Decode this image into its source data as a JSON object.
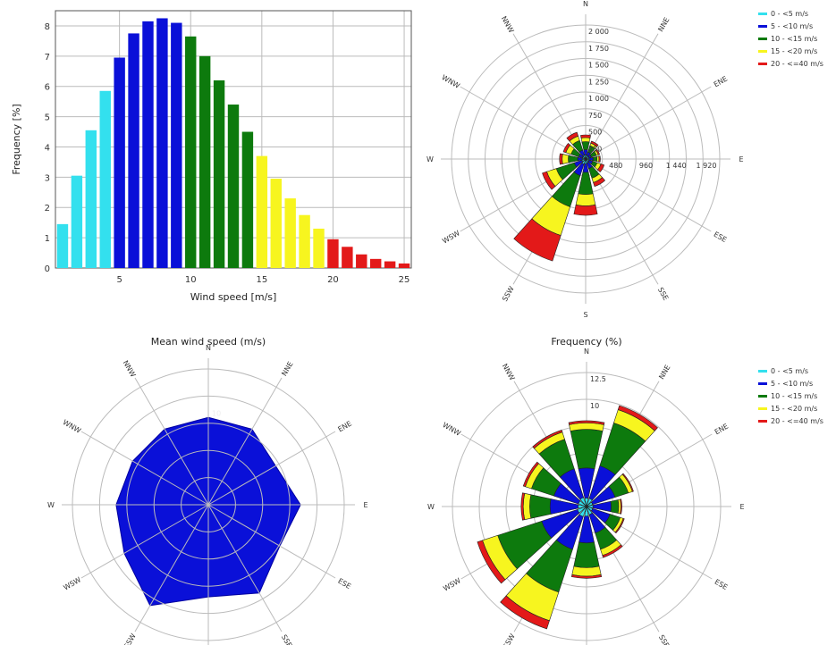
{
  "colors": {
    "cyan": "#33e0ee",
    "blue": "#0a10d8",
    "green": "#0d7a0d",
    "yellow": "#f7f51f",
    "red": "#e31919",
    "grid": "#bbbbbb",
    "axis": "#555555"
  },
  "bins_legend": [
    {
      "label": "0 - <5 m/s",
      "color": "#33e0ee"
    },
    {
      "label": "5 - <10 m/s",
      "color": "#0a10d8"
    },
    {
      "label": "10 - <15 m/s",
      "color": "#0d7a0d"
    },
    {
      "label": "15 - <20 m/s",
      "color": "#f7f51f"
    },
    {
      "label": "20 - <=40 m/s",
      "color": "#e31919"
    }
  ],
  "directions": [
    "N",
    "NNE",
    "ENE",
    "E",
    "ESE",
    "SSE",
    "S",
    "SSW",
    "WSW",
    "W",
    "WNW",
    "NNW"
  ],
  "chart_data": [
    {
      "type": "bar",
      "title": "",
      "xlabel": "Wind speed [m/s]",
      "ylabel": "Frequency [%]",
      "xlim": [
        0.5,
        25.5
      ],
      "ylim": [
        0,
        8.5
      ],
      "xticks": [
        5,
        10,
        15,
        20,
        25
      ],
      "yticks": [
        0,
        1,
        2,
        3,
        4,
        5,
        6,
        7,
        8
      ],
      "grid": true,
      "x": [
        1,
        2,
        3,
        4,
        5,
        6,
        7,
        8,
        9,
        10,
        11,
        12,
        13,
        14,
        15,
        16,
        17,
        18,
        19,
        20,
        21,
        22,
        23,
        24,
        25
      ],
      "values": [
        1.45,
        3.05,
        4.55,
        5.85,
        6.95,
        7.75,
        8.15,
        8.25,
        8.1,
        7.65,
        7.0,
        6.2,
        5.4,
        4.5,
        3.7,
        2.95,
        2.3,
        1.75,
        1.3,
        0.95,
        0.7,
        0.45,
        0.3,
        0.22,
        0.15
      ],
      "bar_colors": [
        "#33e0ee",
        "#33e0ee",
        "#33e0ee",
        "#33e0ee",
        "#0a10d8",
        "#0a10d8",
        "#0a10d8",
        "#0a10d8",
        "#0a10d8",
        "#0d7a0d",
        "#0d7a0d",
        "#0d7a0d",
        "#0d7a0d",
        "#0d7a0d",
        "#f7f51f",
        "#f7f51f",
        "#f7f51f",
        "#f7f51f",
        "#f7f51f",
        "#e31919",
        "#e31919",
        "#e31919",
        "#e31919",
        "#e31919",
        "#e31919"
      ]
    },
    {
      "type": "stacked-polar",
      "title": "",
      "rmax": 2000,
      "ring_labels": [
        "2 000",
        "1 750",
        "1 500",
        "1 250",
        "1 000",
        "750",
        "500",
        "250"
      ],
      "ring_values": [
        2000,
        1750,
        1500,
        1250,
        1000,
        750,
        500,
        250
      ],
      "axis_labels": [
        "480",
        "960",
        "1 440",
        "1 920"
      ],
      "axis_values": [
        480,
        960,
        1440,
        1920
      ],
      "legend": "right",
      "series": [
        {
          "name": "0 - <5 m/s",
          "values": [
            60,
            50,
            50,
            50,
            50,
            60,
            70,
            80,
            60,
            50,
            50,
            60
          ]
        },
        {
          "name": "5 - <10 m/s",
          "values": [
            80,
            60,
            40,
            60,
            60,
            90,
            130,
            180,
            120,
            70,
            60,
            80
          ]
        },
        {
          "name": "10 - <15 m/s",
          "values": [
            120,
            100,
            80,
            60,
            70,
            150,
            330,
            490,
            280,
            140,
            120,
            150
          ]
        },
        {
          "name": "15 - <20 m/s",
          "values": [
            60,
            40,
            30,
            30,
            60,
            70,
            170,
            450,
            150,
            90,
            80,
            70
          ]
        },
        {
          "name": "20 - <=40 m/s",
          "values": [
            40,
            30,
            20,
            20,
            50,
            60,
            140,
            400,
            70,
            40,
            40,
            60
          ]
        }
      ]
    },
    {
      "type": "radar",
      "title": "Mean wind speed (m/s)",
      "rmax": 10,
      "ring_labels": [
        "10"
      ],
      "rings": 5,
      "values": [
        9.0,
        9.0,
        8.0,
        9.5,
        8.5,
        10.5,
        9.5,
        12.0,
        10.0,
        9.5,
        9.0,
        9.0
      ],
      "color": "#0a10d8"
    },
    {
      "type": "stacked-polar",
      "title": "Frequency (%)",
      "rmax": 12.5,
      "ring_labels": [
        "12.5",
        "10"
      ],
      "ring_values": [
        12.5,
        10
      ],
      "rings": 5,
      "legend": "right",
      "series": [
        {
          "name": "0 - <5 m/s",
          "values": [
            0.8,
            0.8,
            0.6,
            0.6,
            0.6,
            0.8,
            0.9,
            1.0,
            0.9,
            0.8,
            0.8,
            0.9
          ]
        },
        {
          "name": "5 - <10 m/s",
          "values": [
            2.8,
            3.2,
            2.2,
            1.7,
            1.7,
            1.8,
            2.5,
            3.2,
            3.5,
            2.6,
            2.4,
            2.8
          ]
        },
        {
          "name": "10 - <15 m/s",
          "values": [
            3.6,
            4.2,
            1.3,
            0.7,
            1.0,
            1.6,
            2.3,
            4.2,
            4.3,
            1.9,
            2.2,
            2.9
          ]
        },
        {
          "name": "15 - <20 m/s",
          "values": [
            0.6,
            1.3,
            0.4,
            0.2,
            0.3,
            0.6,
            0.8,
            2.8,
            1.5,
            0.6,
            0.6,
            0.7
          ]
        },
        {
          "name": "20 - <=40 m/s",
          "values": [
            0.2,
            0.4,
            0.1,
            0.1,
            0.1,
            0.2,
            0.2,
            0.8,
            0.5,
            0.2,
            0.2,
            0.2
          ]
        }
      ]
    }
  ]
}
